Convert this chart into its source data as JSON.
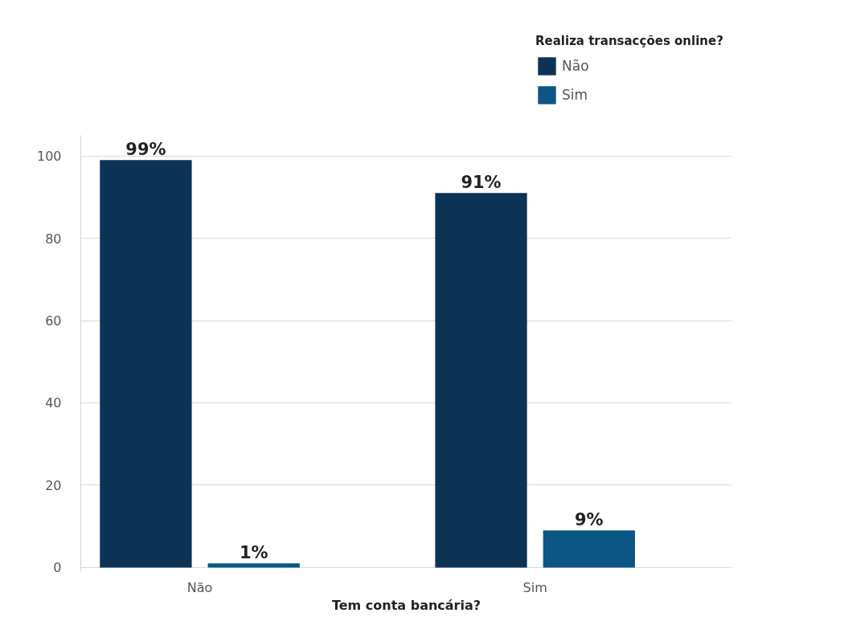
{
  "chart_data": {
    "type": "bar",
    "categories": [
      "Não",
      "Sim"
    ],
    "xlabel": "Tem conta bancária?",
    "legend_title": "Realiza transacções online?",
    "series": [
      {
        "name": "Não",
        "color": "#0c3356",
        "values": [
          99,
          91
        ],
        "value_labels": [
          "99%",
          "91%"
        ]
      },
      {
        "name": "Sim",
        "color": "#0b5685",
        "values": [
          1,
          9
        ],
        "value_labels": [
          "1%",
          "9%"
        ]
      }
    ],
    "ylim": [
      -1,
      105
    ],
    "yticks": [
      0,
      20,
      40,
      60,
      80,
      100
    ],
    "grid": "y",
    "legend": "top right"
  }
}
